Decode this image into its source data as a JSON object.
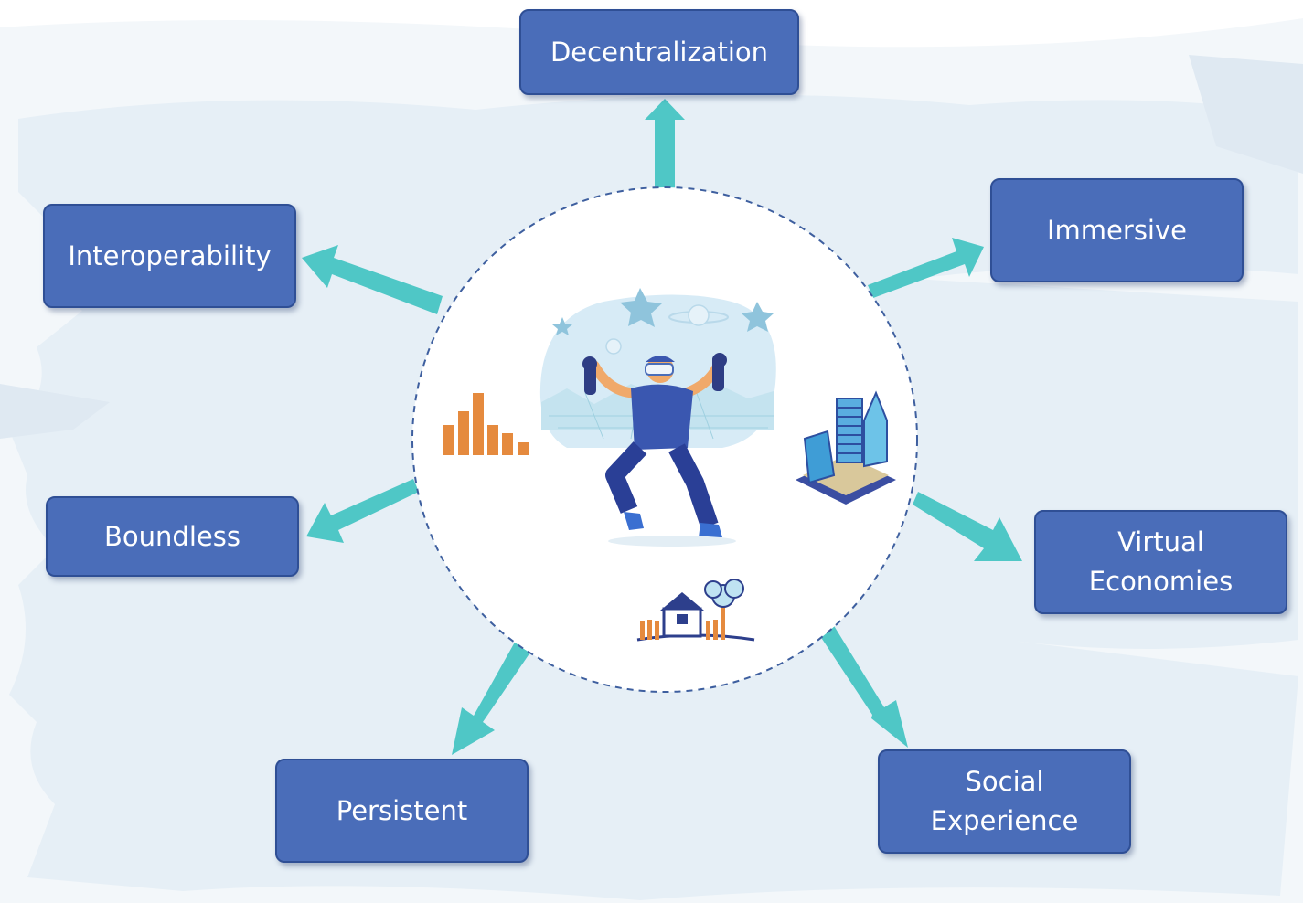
{
  "colors": {
    "node_fill": "#4a6db9",
    "node_border": "#2f4f95",
    "arrow": "#4fc7c6",
    "circle_dash": "#3e5f9f",
    "backdrop": "#e6eff6",
    "accent_orange": "#e58a3e"
  },
  "nodes": {
    "decentralization": "Decentralization",
    "immersive": "Immersive",
    "virtual_economies": "Virtual\nEconomies",
    "social_experience": "Social\nExperience",
    "persistent": "Persistent",
    "boundless": "Boundless",
    "interoperability": "Interoperability"
  },
  "center_icons": [
    "bar-chart-icon",
    "vr-person-illustration",
    "city-buildings-icon",
    "house-with-tree-icon"
  ]
}
